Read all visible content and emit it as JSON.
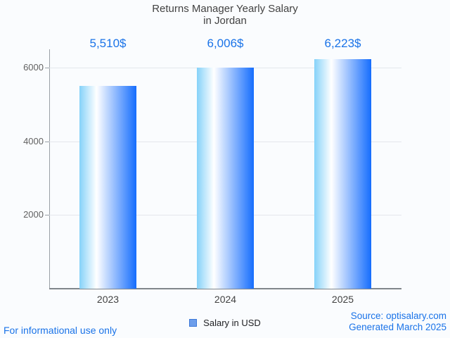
{
  "title": {
    "line1": "Returns Manager Yearly Salary",
    "line2": "in Jordan"
  },
  "chart_data": {
    "type": "bar",
    "title": "Returns Manager Yearly Salary in Jordan",
    "categories": [
      "2023",
      "2024",
      "2025"
    ],
    "series": [
      {
        "name": "Salary in USD",
        "values": [
          5510,
          6006,
          6223
        ],
        "labels": [
          "5,510$",
          "6,006$",
          "6,223$"
        ]
      }
    ],
    "xlabel": "",
    "ylabel": "",
    "y_ticks": [
      2000,
      4000,
      6000
    ],
    "ylim": [
      0,
      6500
    ],
    "grid": true,
    "legend_position": "bottom",
    "bar_gradient": [
      "#85d2f9",
      "#ffffff",
      "#156dfd"
    ],
    "value_label_color": "#1a73e8"
  },
  "legend": {
    "label": "Salary in USD"
  },
  "footer": {
    "left": "For informational use only",
    "source": "Source: optisalary.com",
    "generated": "Generated March 2025"
  },
  "colors": {
    "accent_blue": "#1a73e8",
    "background": "#fafcfe",
    "title_text": "#424242",
    "axis_line": "#80868b",
    "gridline": "#e4e7ec",
    "legend_marker_fill": "#6d9eeb",
    "legend_marker_border": "#3c78d8"
  }
}
